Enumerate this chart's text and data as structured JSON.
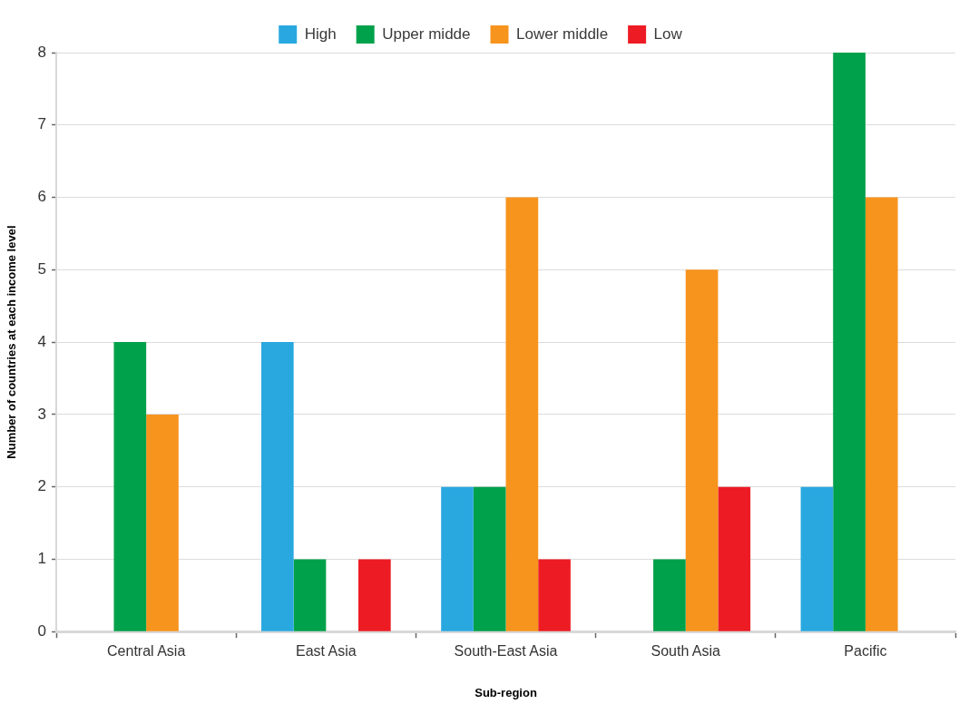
{
  "chart_data": {
    "type": "bar",
    "categories": [
      "Central Asia",
      "East Asia",
      "South-East Asia",
      "South Asia",
      "Pacific"
    ],
    "series": [
      {
        "name": "High",
        "color": "#29a8e0",
        "values": [
          null,
          4,
          2,
          null,
          2
        ]
      },
      {
        "name": "Upper midde",
        "color": "#00a14b",
        "values": [
          4,
          1,
          2,
          1,
          8
        ]
      },
      {
        "name": "Lower middle",
        "color": "#f7941d",
        "values": [
          3,
          null,
          6,
          5,
          6
        ]
      },
      {
        "name": "Low",
        "color": "#ed1c24",
        "values": [
          null,
          1,
          1,
          2,
          null
        ]
      }
    ],
    "xlabel": "Sub-region",
    "ylabel": "Number of countries at each income level",
    "ylim": [
      0,
      8
    ],
    "yticks": [
      0,
      1,
      2,
      3,
      4,
      5,
      6,
      7,
      8
    ],
    "grid": "y",
    "legend": "top"
  }
}
